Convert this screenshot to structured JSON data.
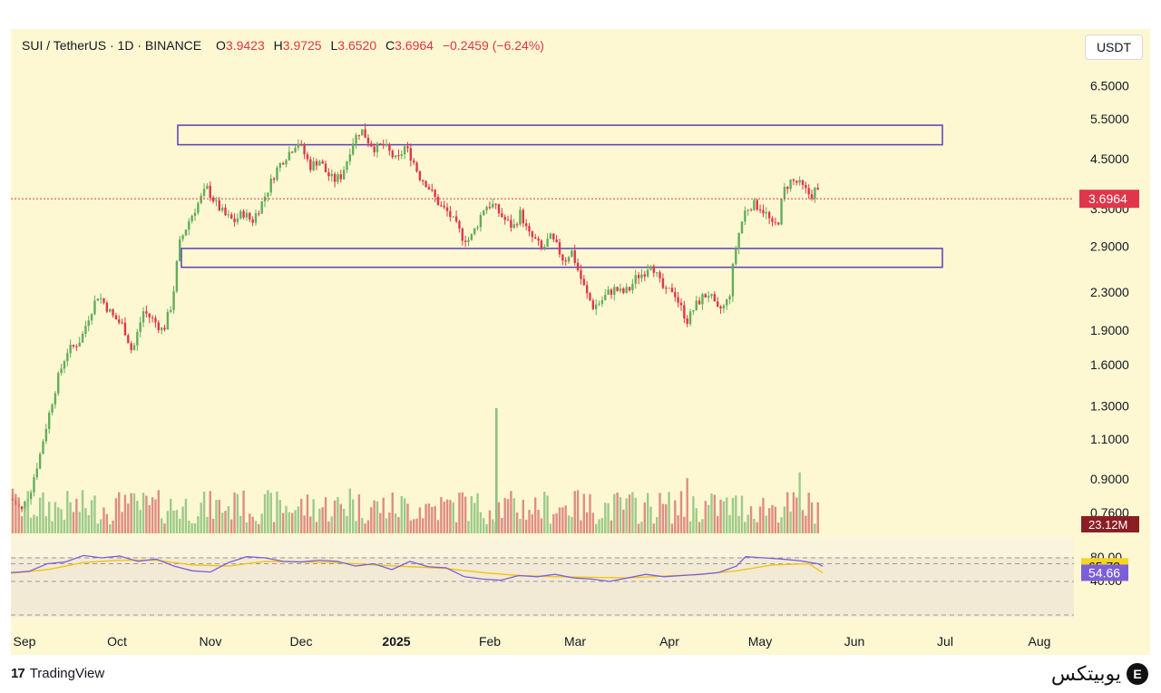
{
  "header": {
    "symbol": "SUI / TetherUS · 1D · BINANCE",
    "open_label": "O",
    "open": "3.9423",
    "high_label": "H",
    "high": "3.9725",
    "low_label": "L",
    "low": "3.6520",
    "close_label": "C",
    "close": "3.6964",
    "change": "−0.2459 (−6.24%)"
  },
  "currency": "USDT",
  "footer": {
    "tv_mark": "17",
    "tv_name": "TradingView"
  },
  "brand": {
    "name": "یوبیتکس",
    "coin": "E"
  },
  "colors": {
    "up": "#63ad5b",
    "down": "#e0364b",
    "zone_border": "#5a3fb8",
    "zone_fill": "#fff8d0",
    "rsi": "#7b5fd9",
    "rsi_ma": "#f0c419",
    "bg": "#fdf8d2"
  },
  "chart_data": {
    "type": "candlestick",
    "scale": "log",
    "price_ticks": [
      "6.5000",
      "5.5000",
      "4.5000",
      "3.5000",
      "2.9000",
      "2.3000",
      "1.9000",
      "1.6000",
      "1.3000",
      "1.1000",
      "0.9000",
      "0.7600"
    ],
    "x_ticks": [
      "Sep",
      "Oct",
      "Nov",
      "Dec",
      "2025",
      "Feb",
      "Mar",
      "Apr",
      "May",
      "Jun",
      "Jul",
      "Aug"
    ],
    "last_price": "3.6964",
    "volume_label": "23.12M",
    "rsi_ticks": [
      "80.00",
      "40.00"
    ],
    "rsi_value": "65.73",
    "rsi_ma_value": "54.66",
    "zones": [
      {
        "name": "resistance",
        "low": 4.85,
        "high": 5.35
      },
      {
        "name": "support",
        "low": 2.62,
        "high": 2.88
      }
    ],
    "price_path": [
      [
        0,
        0.82
      ],
      [
        12,
        0.77
      ],
      [
        22,
        0.86
      ],
      [
        32,
        1.02
      ],
      [
        42,
        1.25
      ],
      [
        52,
        1.5
      ],
      [
        62,
        1.72
      ],
      [
        70,
        1.76
      ],
      [
        78,
        1.84
      ],
      [
        86,
        2.05
      ],
      [
        96,
        2.28
      ],
      [
        102,
        2.2
      ],
      [
        112,
        2.05
      ],
      [
        124,
        1.95
      ],
      [
        134,
        1.7
      ],
      [
        146,
        2.1
      ],
      [
        158,
        2.0
      ],
      [
        168,
        1.9
      ],
      [
        178,
        2.2
      ],
      [
        186,
        2.95
      ],
      [
        196,
        3.3
      ],
      [
        206,
        3.6
      ],
      [
        216,
        3.9
      ],
      [
        226,
        3.6
      ],
      [
        236,
        3.4
      ],
      [
        246,
        3.3
      ],
      [
        256,
        3.45
      ],
      [
        266,
        3.3
      ],
      [
        276,
        3.6
      ],
      [
        284,
        3.9
      ],
      [
        292,
        4.25
      ],
      [
        300,
        4.5
      ],
      [
        308,
        4.7
      ],
      [
        316,
        4.95
      ],
      [
        322,
        4.7
      ],
      [
        330,
        4.35
      ],
      [
        340,
        4.5
      ],
      [
        348,
        4.2
      ],
      [
        356,
        4.05
      ],
      [
        364,
        4.15
      ],
      [
        370,
        4.45
      ],
      [
        376,
        4.9
      ],
      [
        386,
        5.25
      ],
      [
        394,
        4.95
      ],
      [
        402,
        4.75
      ],
      [
        410,
        4.85
      ],
      [
        418,
        4.65
      ],
      [
        426,
        4.45
      ],
      [
        434,
        4.8
      ],
      [
        442,
        4.55
      ],
      [
        450,
        4.15
      ],
      [
        458,
        4.0
      ],
      [
        466,
        3.75
      ],
      [
        474,
        3.55
      ],
      [
        482,
        3.45
      ],
      [
        490,
        3.25
      ],
      [
        498,
        3.05
      ],
      [
        506,
        3.0
      ],
      [
        514,
        3.25
      ],
      [
        522,
        3.55
      ],
      [
        530,
        3.6
      ],
      [
        538,
        3.45
      ],
      [
        546,
        3.3
      ],
      [
        554,
        3.2
      ],
      [
        562,
        3.45
      ],
      [
        570,
        3.1
      ],
      [
        578,
        3.0
      ],
      [
        586,
        2.85
      ],
      [
        594,
        3.05
      ],
      [
        602,
        2.9
      ],
      [
        610,
        2.7
      ],
      [
        618,
        2.85
      ],
      [
        626,
        2.55
      ],
      [
        634,
        2.3
      ],
      [
        642,
        2.15
      ],
      [
        650,
        2.2
      ],
      [
        658,
        2.3
      ],
      [
        666,
        2.35
      ],
      [
        674,
        2.3
      ],
      [
        682,
        2.35
      ],
      [
        690,
        2.5
      ],
      [
        698,
        2.55
      ],
      [
        706,
        2.7
      ],
      [
        714,
        2.45
      ],
      [
        722,
        2.3
      ],
      [
        730,
        2.35
      ],
      [
        738,
        2.15
      ],
      [
        746,
        2.0
      ],
      [
        754,
        2.15
      ],
      [
        762,
        2.25
      ],
      [
        770,
        2.3
      ],
      [
        778,
        2.1
      ],
      [
        786,
        2.15
      ],
      [
        792,
        2.25
      ],
      [
        798,
        2.8
      ],
      [
        804,
        3.2
      ],
      [
        810,
        3.5
      ],
      [
        818,
        3.6
      ],
      [
        826,
        3.55
      ],
      [
        834,
        3.4
      ],
      [
        840,
        3.2
      ],
      [
        846,
        3.3
      ],
      [
        852,
        3.85
      ],
      [
        860,
        4.05
      ],
      [
        868,
        4.0
      ],
      [
        876,
        3.85
      ],
      [
        882,
        3.75
      ],
      [
        888,
        3.9
      ],
      [
        892,
        3.7
      ]
    ],
    "rsi_path": [
      [
        0,
        55
      ],
      [
        20,
        57
      ],
      [
        40,
        70
      ],
      [
        60,
        73
      ],
      [
        80,
        84
      ],
      [
        100,
        80
      ],
      [
        120,
        83
      ],
      [
        140,
        74
      ],
      [
        160,
        78
      ],
      [
        180,
        66
      ],
      [
        200,
        58
      ],
      [
        220,
        56
      ],
      [
        240,
        72
      ],
      [
        260,
        82
      ],
      [
        280,
        80
      ],
      [
        300,
        74
      ],
      [
        320,
        73
      ],
      [
        340,
        76
      ],
      [
        360,
        74
      ],
      [
        380,
        66
      ],
      [
        400,
        70
      ],
      [
        420,
        60
      ],
      [
        440,
        74
      ],
      [
        460,
        65
      ],
      [
        480,
        63
      ],
      [
        500,
        48
      ],
      [
        520,
        44
      ],
      [
        540,
        42
      ],
      [
        560,
        50
      ],
      [
        580,
        48
      ],
      [
        600,
        52
      ],
      [
        620,
        46
      ],
      [
        640,
        44
      ],
      [
        660,
        40
      ],
      [
        680,
        46
      ],
      [
        700,
        52
      ],
      [
        720,
        48
      ],
      [
        740,
        50
      ],
      [
        760,
        52
      ],
      [
        780,
        55
      ],
      [
        800,
        66
      ],
      [
        810,
        82
      ],
      [
        830,
        80
      ],
      [
        850,
        78
      ],
      [
        870,
        75
      ],
      [
        890,
        70
      ],
      [
        895,
        65.73
      ]
    ],
    "rsi_ma_path": [
      [
        0,
        54
      ],
      [
        40,
        60
      ],
      [
        80,
        72
      ],
      [
        120,
        76
      ],
      [
        160,
        76
      ],
      [
        200,
        68
      ],
      [
        240,
        66
      ],
      [
        280,
        74
      ],
      [
        320,
        73
      ],
      [
        360,
        72
      ],
      [
        400,
        68
      ],
      [
        440,
        65
      ],
      [
        480,
        62
      ],
      [
        520,
        55
      ],
      [
        560,
        50
      ],
      [
        600,
        48
      ],
      [
        640,
        47
      ],
      [
        680,
        46
      ],
      [
        720,
        49
      ],
      [
        760,
        52
      ],
      [
        800,
        58
      ],
      [
        840,
        68
      ],
      [
        880,
        70
      ],
      [
        895,
        54.66
      ]
    ]
  }
}
